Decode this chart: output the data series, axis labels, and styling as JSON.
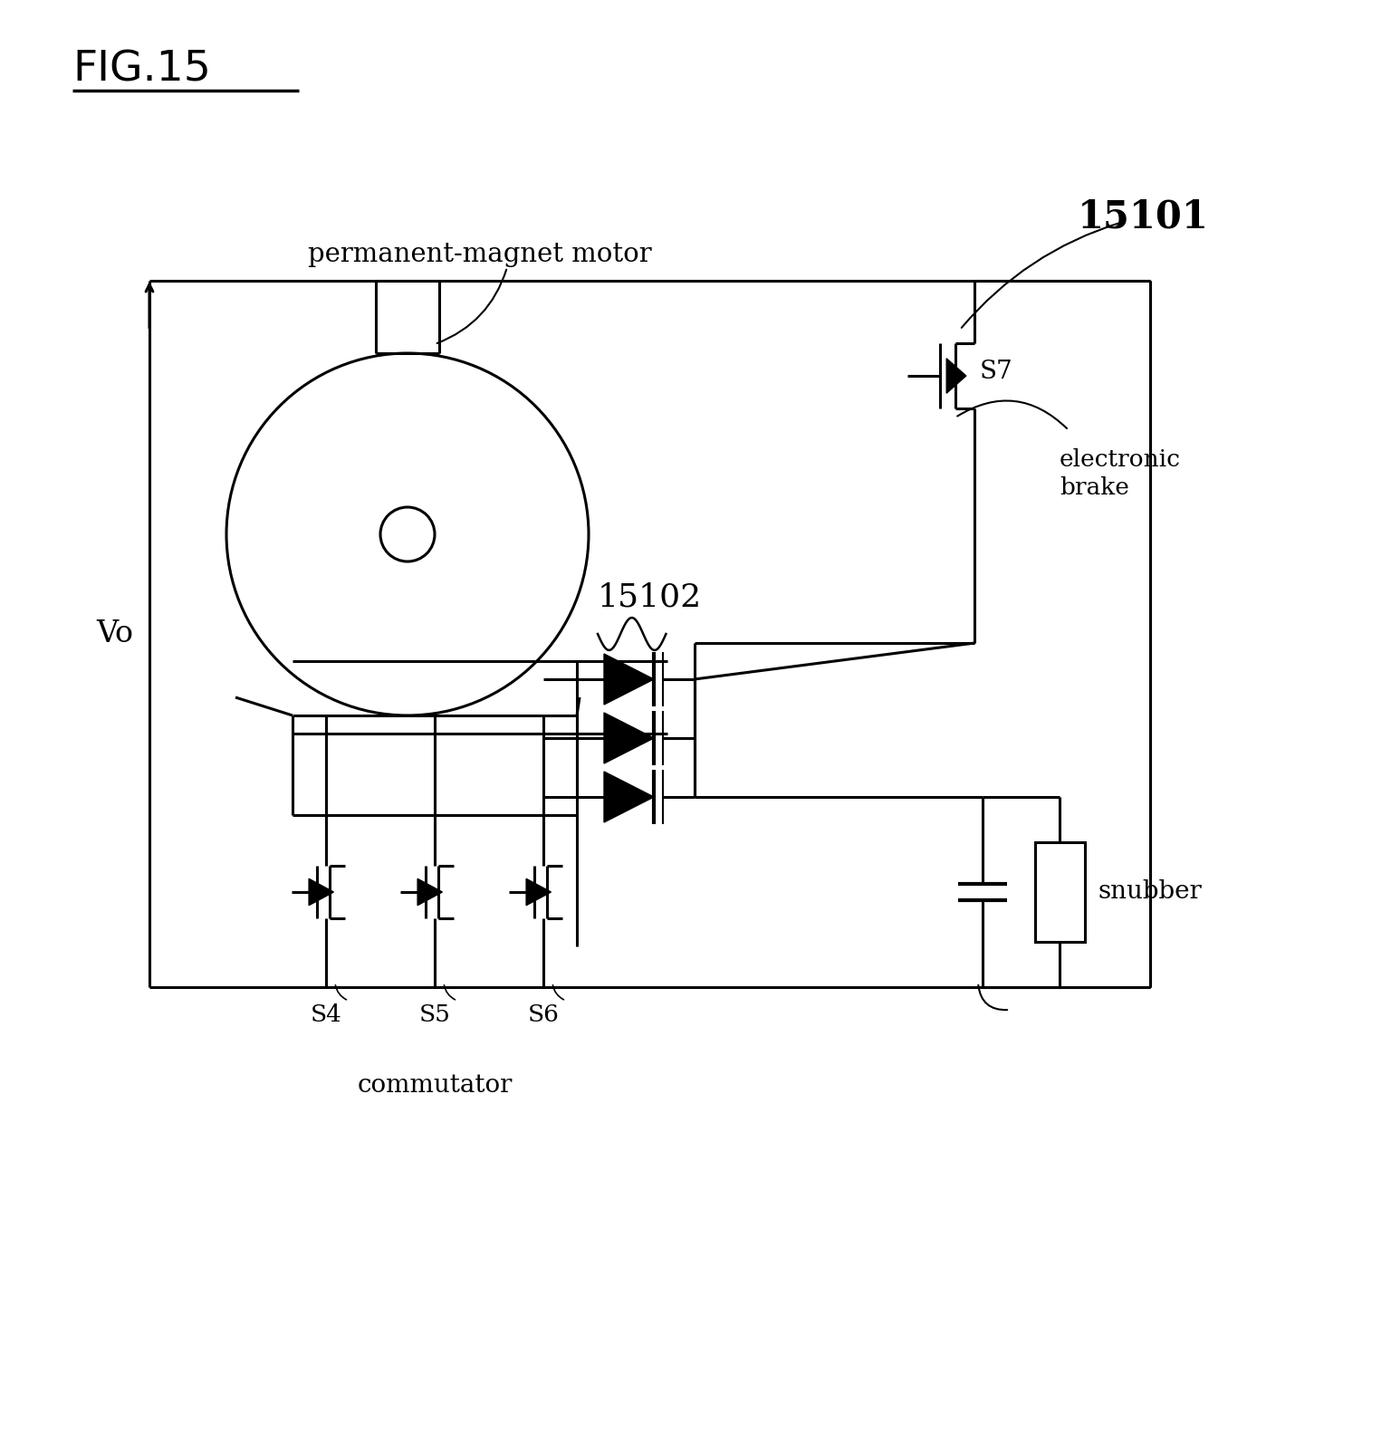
{
  "bg_color": "#ffffff",
  "lc": "#000000",
  "lw": 2.2,
  "lw_thick": 3.0,
  "title": "FIG.15",
  "label_motor": "permanent-magnet motor",
  "label_vo": "Vo",
  "label_15101": "15101",
  "label_15102": "15102",
  "label_s4": "S4",
  "label_s5": "S5",
  "label_s6": "S6",
  "label_s7": "S7",
  "label_commutator": "commutator",
  "label_electronic_brake": "electronic\nbrake",
  "label_snubber": "snubber"
}
